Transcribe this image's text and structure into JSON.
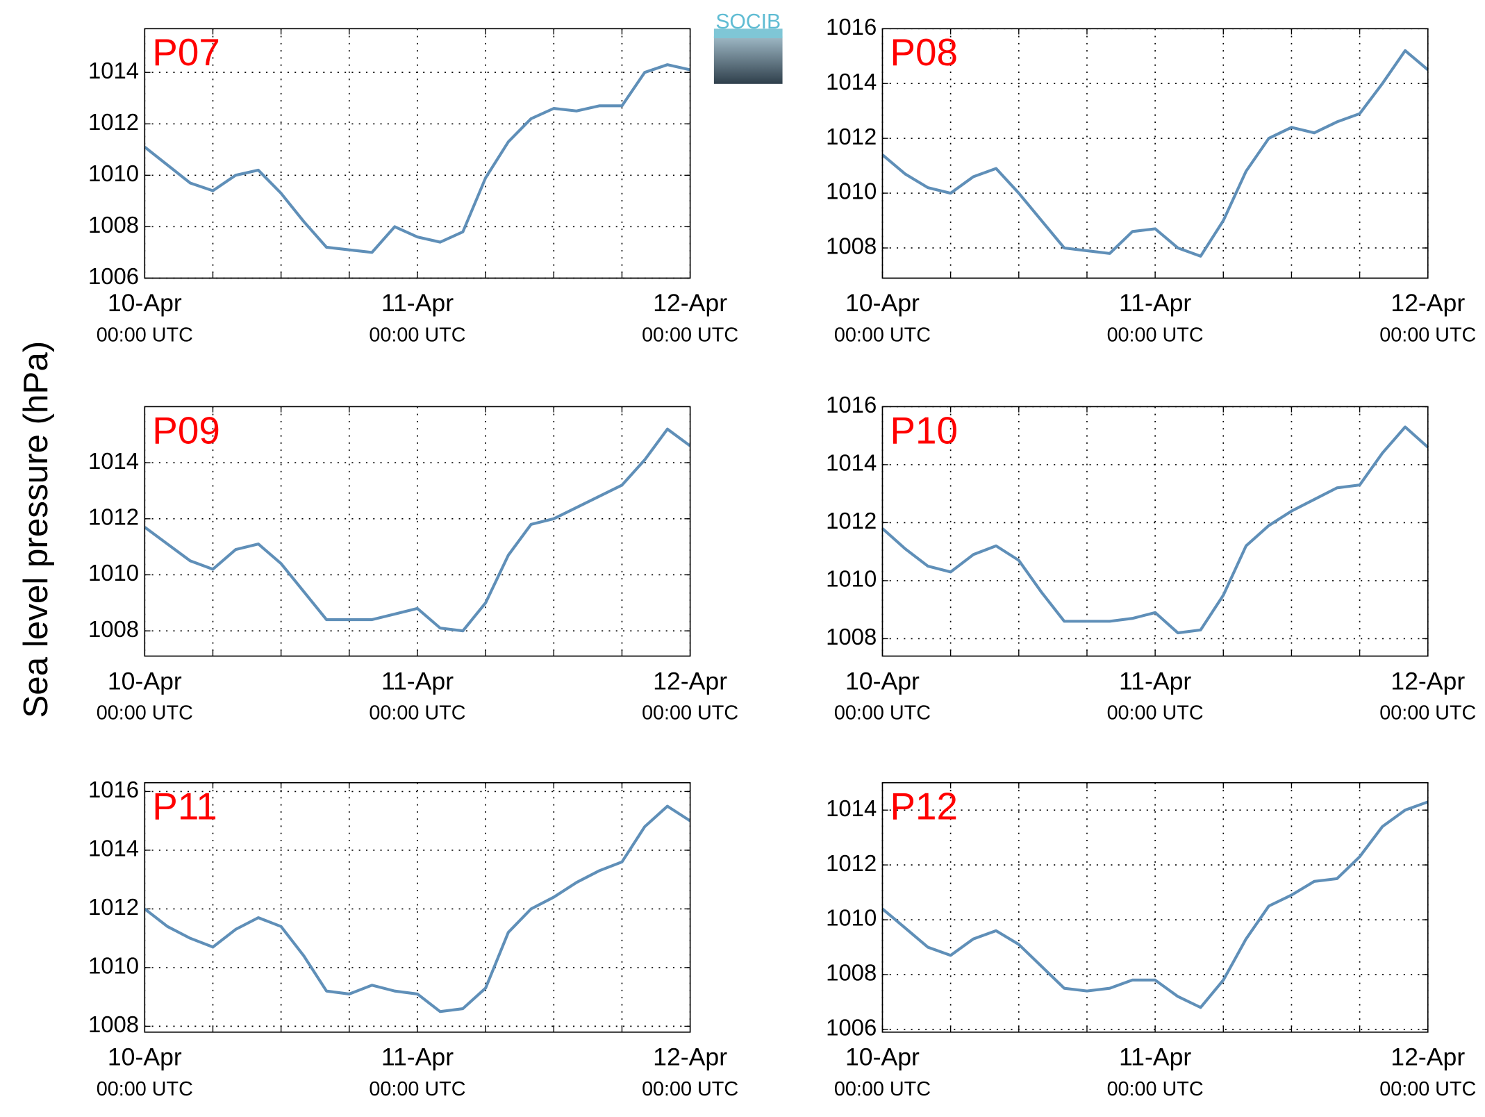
{
  "ylabel": "Sea level pressure (hPa)",
  "logo": "SOCIB",
  "chart_data": [
    {
      "type": "line",
      "title": "P07",
      "color": "#5f8fb8",
      "grid": true,
      "x": [
        0,
        2,
        4,
        6,
        8,
        10,
        12,
        14,
        16,
        18,
        20,
        22,
        24,
        26,
        28,
        30,
        32,
        34,
        36,
        38,
        40,
        42,
        44,
        46,
        48
      ],
      "values": [
        1011.1,
        1010.4,
        1009.7,
        1009.4,
        1010.0,
        1010.2,
        1009.3,
        1008.2,
        1007.2,
        1007.1,
        1007.0,
        1008.0,
        1007.6,
        1007.4,
        1007.8,
        1009.9,
        1011.3,
        1012.2,
        1012.6,
        1012.5,
        1012.7,
        1012.7,
        1014.0,
        1014.3,
        1014.1
      ],
      "xlim": [
        0,
        48
      ],
      "xticks": [
        {
          "value": 0,
          "label": [
            "10-Apr",
            "00:00 UTC"
          ]
        },
        {
          "value": 24,
          "label": [
            "11-Apr",
            "00:00 UTC"
          ]
        },
        {
          "value": 48,
          "label": [
            "12-Apr",
            "00:00 UTC"
          ]
        }
      ],
      "xminor": [
        6,
        12,
        18,
        30,
        36,
        42
      ],
      "ylim": [
        1006,
        1015.7
      ],
      "yticks": [
        1006,
        1008,
        1010,
        1012,
        1014
      ]
    },
    {
      "type": "line",
      "title": "P08",
      "color": "#5f8fb8",
      "grid": true,
      "x": [
        0,
        2,
        4,
        6,
        8,
        10,
        12,
        14,
        16,
        18,
        20,
        22,
        24,
        26,
        28,
        30,
        32,
        34,
        36,
        38,
        40,
        42,
        44,
        46,
        48
      ],
      "values": [
        1011.4,
        1010.7,
        1010.2,
        1010.0,
        1010.6,
        1010.9,
        1010.0,
        1009.0,
        1008.0,
        1007.9,
        1007.8,
        1008.6,
        1008.7,
        1008.0,
        1007.7,
        1009.0,
        1010.8,
        1012.0,
        1012.4,
        1012.2,
        1012.6,
        1012.9,
        1014.0,
        1015.2,
        1014.5
      ],
      "xlim": [
        0,
        48
      ],
      "xticks": [
        {
          "value": 0,
          "label": [
            "10-Apr",
            "00:00 UTC"
          ]
        },
        {
          "value": 24,
          "label": [
            "11-Apr",
            "00:00 UTC"
          ]
        },
        {
          "value": 48,
          "label": [
            "12-Apr",
            "00:00 UTC"
          ]
        }
      ],
      "xminor": [
        6,
        12,
        18,
        30,
        36,
        42
      ],
      "ylim": [
        1006.9,
        1016
      ],
      "yticks": [
        1008,
        1010,
        1012,
        1014,
        1016
      ]
    },
    {
      "type": "line",
      "title": "P09",
      "color": "#5f8fb8",
      "grid": true,
      "x": [
        0,
        2,
        4,
        6,
        8,
        10,
        12,
        14,
        16,
        18,
        20,
        22,
        24,
        26,
        28,
        30,
        32,
        34,
        36,
        38,
        40,
        42,
        44,
        46,
        48
      ],
      "values": [
        1011.7,
        1011.1,
        1010.5,
        1010.2,
        1010.9,
        1011.1,
        1010.4,
        1009.4,
        1008.4,
        1008.4,
        1008.4,
        1008.6,
        1008.8,
        1008.1,
        1008.0,
        1009.0,
        1010.7,
        1011.8,
        1012.0,
        1012.4,
        1012.8,
        1013.2,
        1014.1,
        1015.2,
        1014.6
      ],
      "xlim": [
        0,
        48
      ],
      "xticks": [
        {
          "value": 0,
          "label": [
            "10-Apr",
            "00:00 UTC"
          ]
        },
        {
          "value": 24,
          "label": [
            "11-Apr",
            "00:00 UTC"
          ]
        },
        {
          "value": 48,
          "label": [
            "12-Apr",
            "00:00 UTC"
          ]
        }
      ],
      "xminor": [
        6,
        12,
        18,
        30,
        36,
        42
      ],
      "ylim": [
        1007.1,
        1016
      ],
      "yticks": [
        1008,
        1010,
        1012,
        1014
      ]
    },
    {
      "type": "line",
      "title": "P10",
      "color": "#5f8fb8",
      "grid": true,
      "x": [
        0,
        2,
        4,
        6,
        8,
        10,
        12,
        14,
        16,
        18,
        20,
        22,
        24,
        26,
        28,
        30,
        32,
        34,
        36,
        38,
        40,
        42,
        44,
        46,
        48
      ],
      "values": [
        1011.8,
        1011.1,
        1010.5,
        1010.3,
        1010.9,
        1011.2,
        1010.7,
        1009.6,
        1008.6,
        1008.6,
        1008.6,
        1008.7,
        1008.9,
        1008.2,
        1008.3,
        1009.5,
        1011.2,
        1011.9,
        1012.4,
        1012.8,
        1013.2,
        1013.3,
        1014.4,
        1015.3,
        1014.6
      ],
      "xlim": [
        0,
        48
      ],
      "xticks": [
        {
          "value": 0,
          "label": [
            "10-Apr",
            "00:00 UTC"
          ]
        },
        {
          "value": 24,
          "label": [
            "11-Apr",
            "00:00 UTC"
          ]
        },
        {
          "value": 48,
          "label": [
            "12-Apr",
            "00:00 UTC"
          ]
        }
      ],
      "xminor": [
        6,
        12,
        18,
        30,
        36,
        42
      ],
      "ylim": [
        1007.4,
        1016
      ],
      "yticks": [
        1008,
        1010,
        1012,
        1014,
        1016
      ]
    },
    {
      "type": "line",
      "title": "P11",
      "color": "#5f8fb8",
      "grid": true,
      "x": [
        0,
        2,
        4,
        6,
        8,
        10,
        12,
        14,
        16,
        18,
        20,
        22,
        24,
        26,
        28,
        30,
        32,
        34,
        36,
        38,
        40,
        42,
        44,
        46,
        48
      ],
      "values": [
        1012.0,
        1011.4,
        1011.0,
        1010.7,
        1011.3,
        1011.7,
        1011.4,
        1010.4,
        1009.2,
        1009.1,
        1009.4,
        1009.2,
        1009.1,
        1008.5,
        1008.6,
        1009.3,
        1011.2,
        1012.0,
        1012.4,
        1012.9,
        1013.3,
        1013.6,
        1014.8,
        1015.5,
        1015.0
      ],
      "xlim": [
        0,
        48
      ],
      "xticks": [
        {
          "value": 0,
          "label": [
            "10-Apr",
            "00:00 UTC"
          ]
        },
        {
          "value": 24,
          "label": [
            "11-Apr",
            "00:00 UTC"
          ]
        },
        {
          "value": 48,
          "label": [
            "12-Apr",
            "00:00 UTC"
          ]
        }
      ],
      "xminor": [
        6,
        12,
        18,
        30,
        36,
        42
      ],
      "ylim": [
        1007.8,
        1016.3
      ],
      "yticks": [
        1008,
        1010,
        1012,
        1014,
        1016
      ]
    },
    {
      "type": "line",
      "title": "P12",
      "color": "#5f8fb8",
      "grid": true,
      "x": [
        0,
        2,
        4,
        6,
        8,
        10,
        12,
        14,
        16,
        18,
        20,
        22,
        24,
        26,
        28,
        30,
        32,
        34,
        36,
        38,
        40,
        42,
        44,
        46,
        48
      ],
      "values": [
        1010.4,
        1009.7,
        1009.0,
        1008.7,
        1009.3,
        1009.6,
        1009.1,
        1008.3,
        1007.5,
        1007.4,
        1007.5,
        1007.8,
        1007.8,
        1007.2,
        1006.8,
        1007.8,
        1009.3,
        1010.5,
        1010.9,
        1011.4,
        1011.5,
        1012.3,
        1013.4,
        1014.0,
        1014.3
      ],
      "xlim": [
        0,
        48
      ],
      "xticks": [
        {
          "value": 0,
          "label": [
            "10-Apr",
            "00:00 UTC"
          ]
        },
        {
          "value": 24,
          "label": [
            "11-Apr",
            "00:00 UTC"
          ]
        },
        {
          "value": 48,
          "label": [
            "12-Apr",
            "00:00 UTC"
          ]
        }
      ],
      "xminor": [
        6,
        12,
        18,
        30,
        36,
        42
      ],
      "ylim": [
        1005.9,
        1015
      ],
      "yticks": [
        1006,
        1008,
        1010,
        1012,
        1014
      ]
    }
  ]
}
